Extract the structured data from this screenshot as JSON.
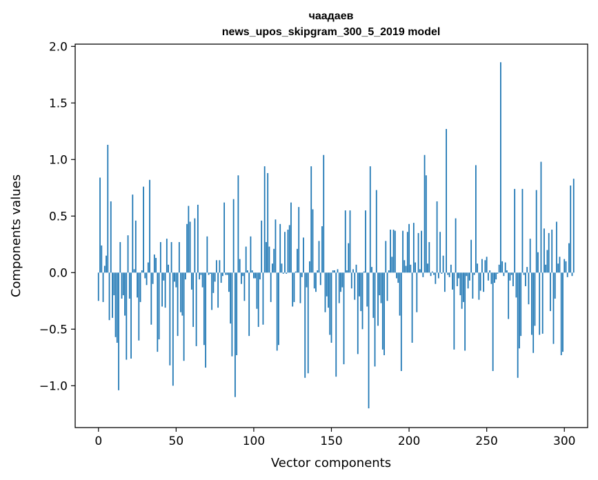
{
  "chart_data": {
    "type": "bar",
    "title": "чаадаев",
    "subtitle": "news_upos_skipgram_300_5_2019 model",
    "xlabel": "Vector components",
    "ylabel": "Components values",
    "xlim": [
      -15,
      315
    ],
    "ylim": [
      -1.37,
      2.02
    ],
    "xticks": [
      0,
      50,
      100,
      150,
      200,
      250,
      300
    ],
    "xtick_labels": [
      "0",
      "50",
      "100",
      "150",
      "200",
      "250",
      "300"
    ],
    "yticks": [
      -1.0,
      -0.5,
      0.0,
      0.5,
      1.0,
      1.5,
      2.0
    ],
    "ytick_labels": [
      "−1.0",
      "−0.5",
      "0.0",
      "0.5",
      "1.0",
      "1.5",
      "2.0"
    ],
    "grid": false,
    "bar_color": "#1f77b4",
    "x_start": 0,
    "values": [
      -0.25,
      0.84,
      0.24,
      -0.26,
      0.06,
      0.15,
      1.13,
      -0.42,
      0.63,
      -0.4,
      -0.2,
      -0.57,
      -0.62,
      -1.04,
      0.27,
      -0.23,
      -0.2,
      -0.38,
      -0.77,
      0.33,
      -0.23,
      -0.76,
      0.69,
      0.03,
      0.46,
      -0.22,
      -0.6,
      -0.26,
      0.02,
      0.76,
      -0.05,
      -0.11,
      0.09,
      0.82,
      -0.46,
      -0.1,
      0.16,
      0.13,
      -0.7,
      -0.59,
      0.27,
      -0.3,
      -0.07,
      -0.31,
      0.3,
      0.07,
      -0.82,
      0.27,
      -1.0,
      -0.08,
      -0.13,
      -0.56,
      0.27,
      -0.35,
      -0.38,
      -0.78,
      -0.06,
      0.43,
      0.59,
      0.45,
      -0.15,
      -0.48,
      0.48,
      -0.65,
      0.6,
      -0.06,
      -0.02,
      -0.13,
      -0.64,
      -0.84,
      0.32,
      -0.02,
      -0.01,
      -0.33,
      -0.18,
      -0.08,
      0.11,
      -0.31,
      0.11,
      -0.09,
      -0.03,
      0.62,
      -0.02,
      -0.02,
      -0.17,
      -0.45,
      -0.74,
      0.65,
      -1.1,
      -0.73,
      0.86,
      0.12,
      -0.1,
      -0.03,
      -0.25,
      0.23,
      0.02,
      -0.56,
      0.32,
      0.02,
      -0.05,
      -0.05,
      -0.32,
      -0.48,
      -0.06,
      0.46,
      -0.46,
      0.94,
      0.27,
      0.88,
      0.23,
      -0.26,
      0.08,
      0.21,
      0.47,
      -0.69,
      -0.64,
      0.43,
      0.08,
      -0.01,
      0.36,
      -0.01,
      0.38,
      0.42,
      0.62,
      -0.3,
      -0.26,
      0.01,
      0.21,
      0.58,
      -0.27,
      -0.04,
      0.31,
      -0.93,
      -0.13,
      -0.89,
      0.1,
      0.94,
      0.56,
      -0.14,
      -0.17,
      0.02,
      0.28,
      -0.11,
      0.41,
      1.04,
      -0.35,
      -0.21,
      -0.31,
      -0.55,
      -0.62,
      0.02,
      0.02,
      -0.92,
      0.03,
      -0.27,
      -0.17,
      -0.13,
      -0.81,
      0.55,
      0.02,
      0.26,
      0.55,
      -0.14,
      0.03,
      -0.24,
      0.07,
      -0.72,
      -0.21,
      -0.34,
      -0.5,
      0.01,
      0.55,
      -0.3,
      -1.2,
      0.94,
      0.05,
      -0.4,
      -0.83,
      0.73,
      -0.47,
      -0.2,
      -0.27,
      -0.68,
      -0.73,
      0.28,
      -0.25,
      0.02,
      0.38,
      0.14,
      0.38,
      0.37,
      -0.05,
      -0.09,
      -0.38,
      -0.87,
      0.37,
      0.11,
      0.06,
      0.36,
      0.43,
      0.07,
      -0.62,
      0.44,
      0.09,
      -0.35,
      0.35,
      0.03,
      0.37,
      -0.04,
      1.04,
      0.86,
      0.08,
      0.27,
      -0.03,
      0.01,
      -0.02,
      -0.1,
      0.63,
      -0.05,
      0.36,
      -0.01,
      0.15,
      -0.17,
      1.27,
      -0.02,
      -0.04,
      0.07,
      -0.15,
      -0.68,
      0.48,
      -0.12,
      -0.05,
      -0.2,
      -0.32,
      -0.26,
      -0.69,
      -0.03,
      -0.14,
      -0.07,
      0.29,
      -0.23,
      -0.02,
      0.95,
      0.08,
      -0.24,
      -0.16,
      0.12,
      -0.17,
      0.11,
      0.14,
      -0.07,
      0.02,
      -0.1,
      -0.87,
      -0.09,
      -0.06,
      -0.01,
      0.07,
      1.86,
      0.1,
      -0.03,
      0.09,
      0.02,
      -0.41,
      -0.07,
      -0.02,
      -0.12,
      0.74,
      -0.22,
      -0.93,
      -0.67,
      -0.56,
      0.74,
      -0.02,
      -0.12,
      0.05,
      -0.28,
      0.3,
      -0.55,
      -0.71,
      -0.47,
      0.73,
      0.18,
      -0.55,
      0.98,
      -0.54,
      0.39,
      0.07,
      0.2,
      0.35,
      -0.34,
      0.38,
      -0.63,
      -0.23,
      0.45,
      0.08,
      0.14,
      -0.73,
      -0.7,
      0.12,
      0.1,
      -0.04,
      0.26,
      0.77,
      -0.03,
      0.83
    ]
  }
}
